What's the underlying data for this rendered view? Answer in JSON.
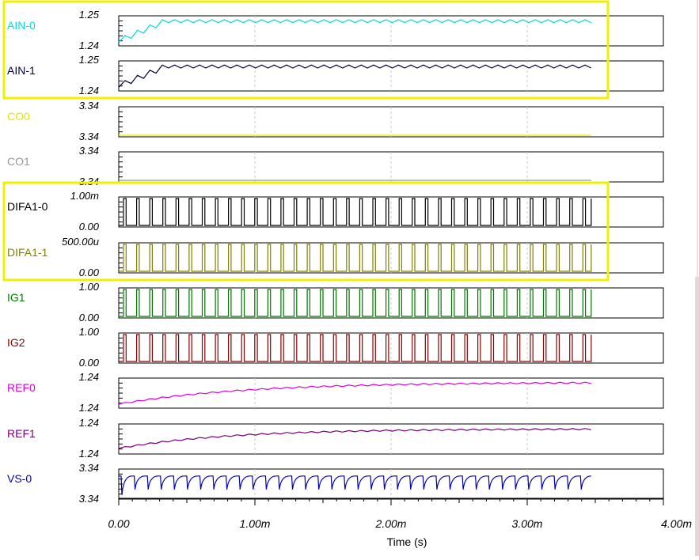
{
  "chart_data": {
    "type": "line",
    "xlabel": "Time (s)",
    "x_ticks": [
      "0.00",
      "1.00m",
      "2.00m",
      "3.00m",
      "4.00m"
    ],
    "xlim": [
      0,
      0.004
    ],
    "signal_end": 0.00347,
    "traces": [
      {
        "name": "AIN-0",
        "color": "#00dcdc",
        "ticks": [
          "1.25",
          "1.24"
        ],
        "ylim": [
          1.24,
          1.25
        ],
        "kind": "ripple",
        "base": 1.2486,
        "amp": 0.0011,
        "start": 1.2408,
        "count": 38
      },
      {
        "name": "AIN-1",
        "color": "#00003c",
        "ticks": [
          "1.25",
          "1.24"
        ],
        "ylim": [
          1.24,
          1.25
        ],
        "kind": "ripple",
        "base": 1.2485,
        "amp": 0.0011,
        "start": 1.2408,
        "count": 38
      },
      {
        "name": "CO0",
        "color": "#e6e600",
        "ticks": [
          "3.34",
          "3.34"
        ],
        "ylim": [
          3.3398,
          3.3402
        ],
        "kind": "flat",
        "value": 3.3398
      },
      {
        "name": "CO1",
        "color": "#969696",
        "ticks": [
          "3.34",
          "3.34"
        ],
        "ylim": [
          3.3398,
          3.3402
        ],
        "kind": "flat",
        "value": 3.3398
      },
      {
        "name": "DIFA1-0",
        "color": "#000000",
        "ticks": [
          "1.00m",
          "0.00"
        ],
        "ylim": [
          0,
          0.001
        ],
        "kind": "square",
        "high": 0.001,
        "low": 0,
        "count": 36
      },
      {
        "name": "DIFA1-1",
        "color": "#828200",
        "ticks": [
          "500.00u",
          "0.00"
        ],
        "ylim": [
          0,
          0.0005
        ],
        "kind": "square",
        "high": 0.0005,
        "low": 0,
        "count": 36
      },
      {
        "name": "IG1",
        "color": "#007800",
        "ticks": [
          "1.00",
          "0.00"
        ],
        "ylim": [
          0,
          1
        ],
        "kind": "square",
        "high": 1,
        "low": 0,
        "count": 36
      },
      {
        "name": "IG2",
        "color": "#8c0000",
        "ticks": [
          "1.00",
          "0.00"
        ],
        "ylim": [
          0,
          1
        ],
        "kind": "square",
        "high": 1,
        "low": 0,
        "count": 36
      },
      {
        "name": "REF0",
        "color": "#dc00dc",
        "ticks": [
          "1.24",
          "1.24"
        ],
        "ylim": [
          1.236,
          1.244
        ],
        "kind": "rise",
        "start": 1.2367,
        "end": 1.2432,
        "tau": 0.0009,
        "ripple": 0.0002,
        "count": 38
      },
      {
        "name": "REF1",
        "color": "#780078",
        "ticks": [
          "1.24",
          "1.24"
        ],
        "ylim": [
          1.236,
          1.244
        ],
        "kind": "rise",
        "start": 1.2372,
        "end": 1.243,
        "tau": 0.0008,
        "ripple": 0.0002,
        "count": 38
      },
      {
        "name": "VS-0",
        "color": "#0000b4",
        "ticks": [
          "3.34",
          "3.34"
        ],
        "ylim": [
          3.3396,
          3.3406
        ],
        "kind": "sawtooth",
        "high": 3.3404,
        "low": 3.3399,
        "first_low": 3.3397,
        "count": 36
      }
    ],
    "highlight_groups": [
      [
        "AIN-0",
        "AIN-1"
      ],
      [
        "DIFA1-0",
        "DIFA1-1"
      ]
    ],
    "highlight_color": "#f0f000",
    "grid": true
  }
}
